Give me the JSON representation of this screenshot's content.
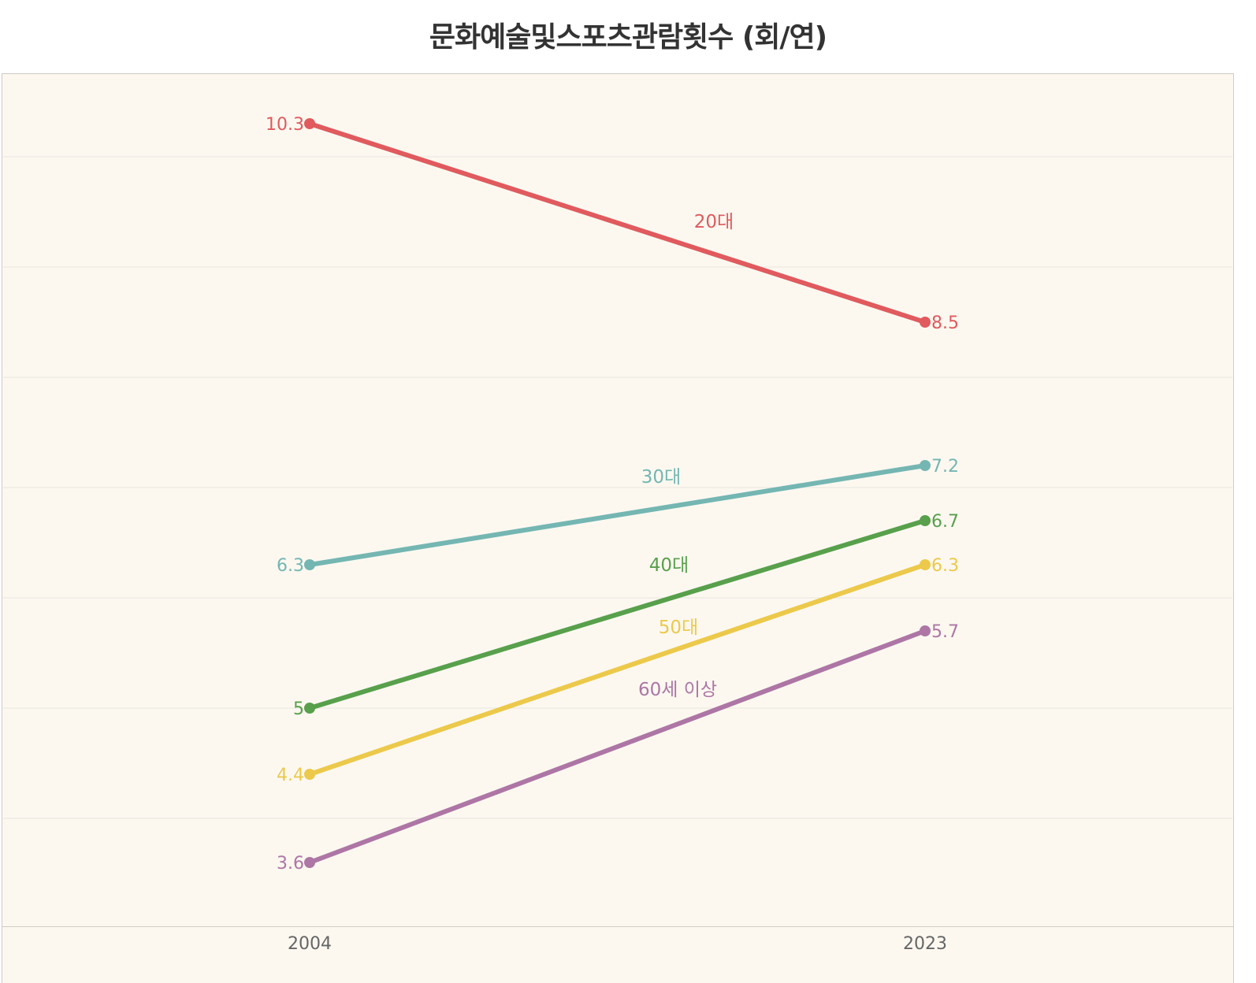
{
  "title": "문화예술및스포츠관람횟수 (회/연)",
  "x_axis": {
    "ticks": [
      "2004",
      "2023"
    ]
  },
  "colors": {
    "background": "#fcf8f0",
    "grid": "#efece6",
    "border": "#cfcbc6",
    "20s": "#e05a5e",
    "30s": "#74b6b2",
    "40s": "#58a04c",
    "50s": "#ecc94b",
    "60plus": "#ad76a5"
  },
  "chart_data": {
    "type": "line",
    "title": "문화예술및스포츠관람횟수 (회/연)",
    "xlabel": "",
    "ylabel": "",
    "categories": [
      "2004",
      "2023"
    ],
    "series": [
      {
        "name": "20대",
        "values": [
          10.3,
          8.5
        ],
        "color": "#e05a5e"
      },
      {
        "name": "30대",
        "values": [
          6.3,
          7.2
        ],
        "color": "#74b6b2"
      },
      {
        "name": "40대",
        "values": [
          5,
          6.7
        ],
        "color": "#58a04c"
      },
      {
        "name": "50대",
        "values": [
          4.4,
          6.3
        ],
        "color": "#ecc94b"
      },
      {
        "name": "60세 이상",
        "values": [
          3.6,
          5.7
        ],
        "color": "#ad76a5"
      }
    ],
    "ylim": [
      3,
      10.76
    ],
    "gridlines_y": [
      4,
      5,
      6,
      7,
      8,
      9,
      10
    ],
    "grid": true,
    "legend": "inline labels at line midpoints",
    "data_labels": {
      "2004": [
        "10.3",
        "6.3",
        "5",
        "4.4",
        "3.6"
      ],
      "2023": [
        "8.5",
        "7.2",
        "6.7",
        "6.3",
        "5.7"
      ]
    }
  }
}
